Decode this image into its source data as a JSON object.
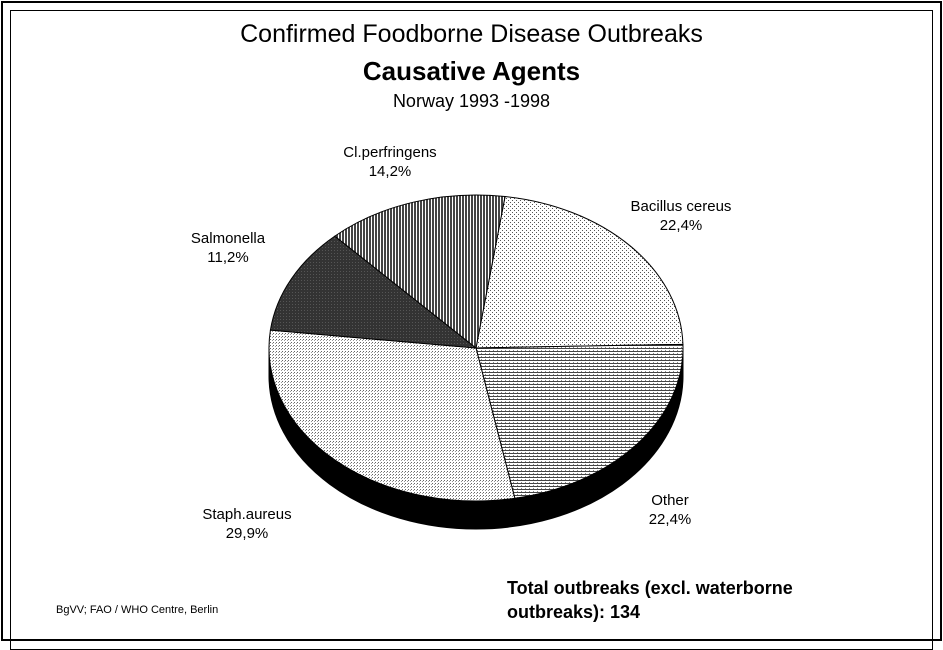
{
  "chart_data": {
    "type": "pie",
    "title": "Confirmed Foodborne Disease Outbreaks",
    "subtitle": "Causative Agents",
    "subtitle2": "Norway 1993 -1998",
    "slices": [
      {
        "label": "Bacillus cereus",
        "value": 22.4,
        "value_label": "22,4%",
        "pattern": "dots"
      },
      {
        "label": "Other",
        "value": 22.4,
        "value_label": "22,4%",
        "pattern": "hlines"
      },
      {
        "label": "Staph.aureus",
        "value": 29.9,
        "value_label": "29,9%",
        "pattern": "grid"
      },
      {
        "label": "Salmonella",
        "value": 11.2,
        "value_label": "11,2%",
        "pattern": "dark"
      },
      {
        "label": "Cl.perfringens",
        "value": 14.2,
        "value_label": "14,2%",
        "pattern": "vlines"
      }
    ]
  },
  "footer": {
    "credit": "BgVV; FAO / WHO Centre, Berlin",
    "total_line1": "Total outbreaks (excl. waterborne",
    "total_line2": "outbreaks): 134"
  }
}
